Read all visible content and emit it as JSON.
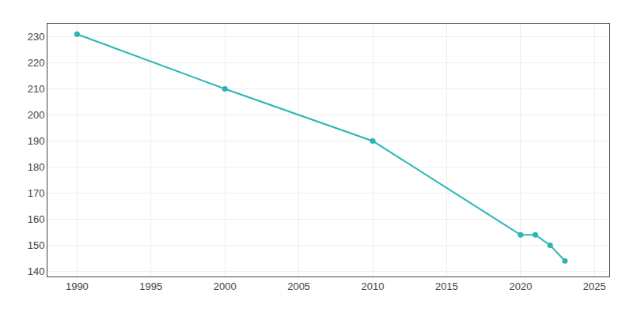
{
  "chart_data": {
    "type": "line",
    "x": [
      1990,
      2000,
      2010,
      2020,
      2021,
      2022,
      2023
    ],
    "values": [
      231,
      210,
      190,
      154,
      154,
      150,
      144
    ],
    "color": "#2ab5b5",
    "marker": "circle",
    "line_style": "solid",
    "xlim": [
      1988,
      2026
    ],
    "ylim": [
      138,
      235
    ],
    "xticks": [
      1990,
      1995,
      2000,
      2005,
      2010,
      2015,
      2020,
      2025
    ],
    "yticks": [
      140,
      150,
      160,
      170,
      180,
      190,
      200,
      210,
      220,
      230
    ],
    "grid": true
  }
}
